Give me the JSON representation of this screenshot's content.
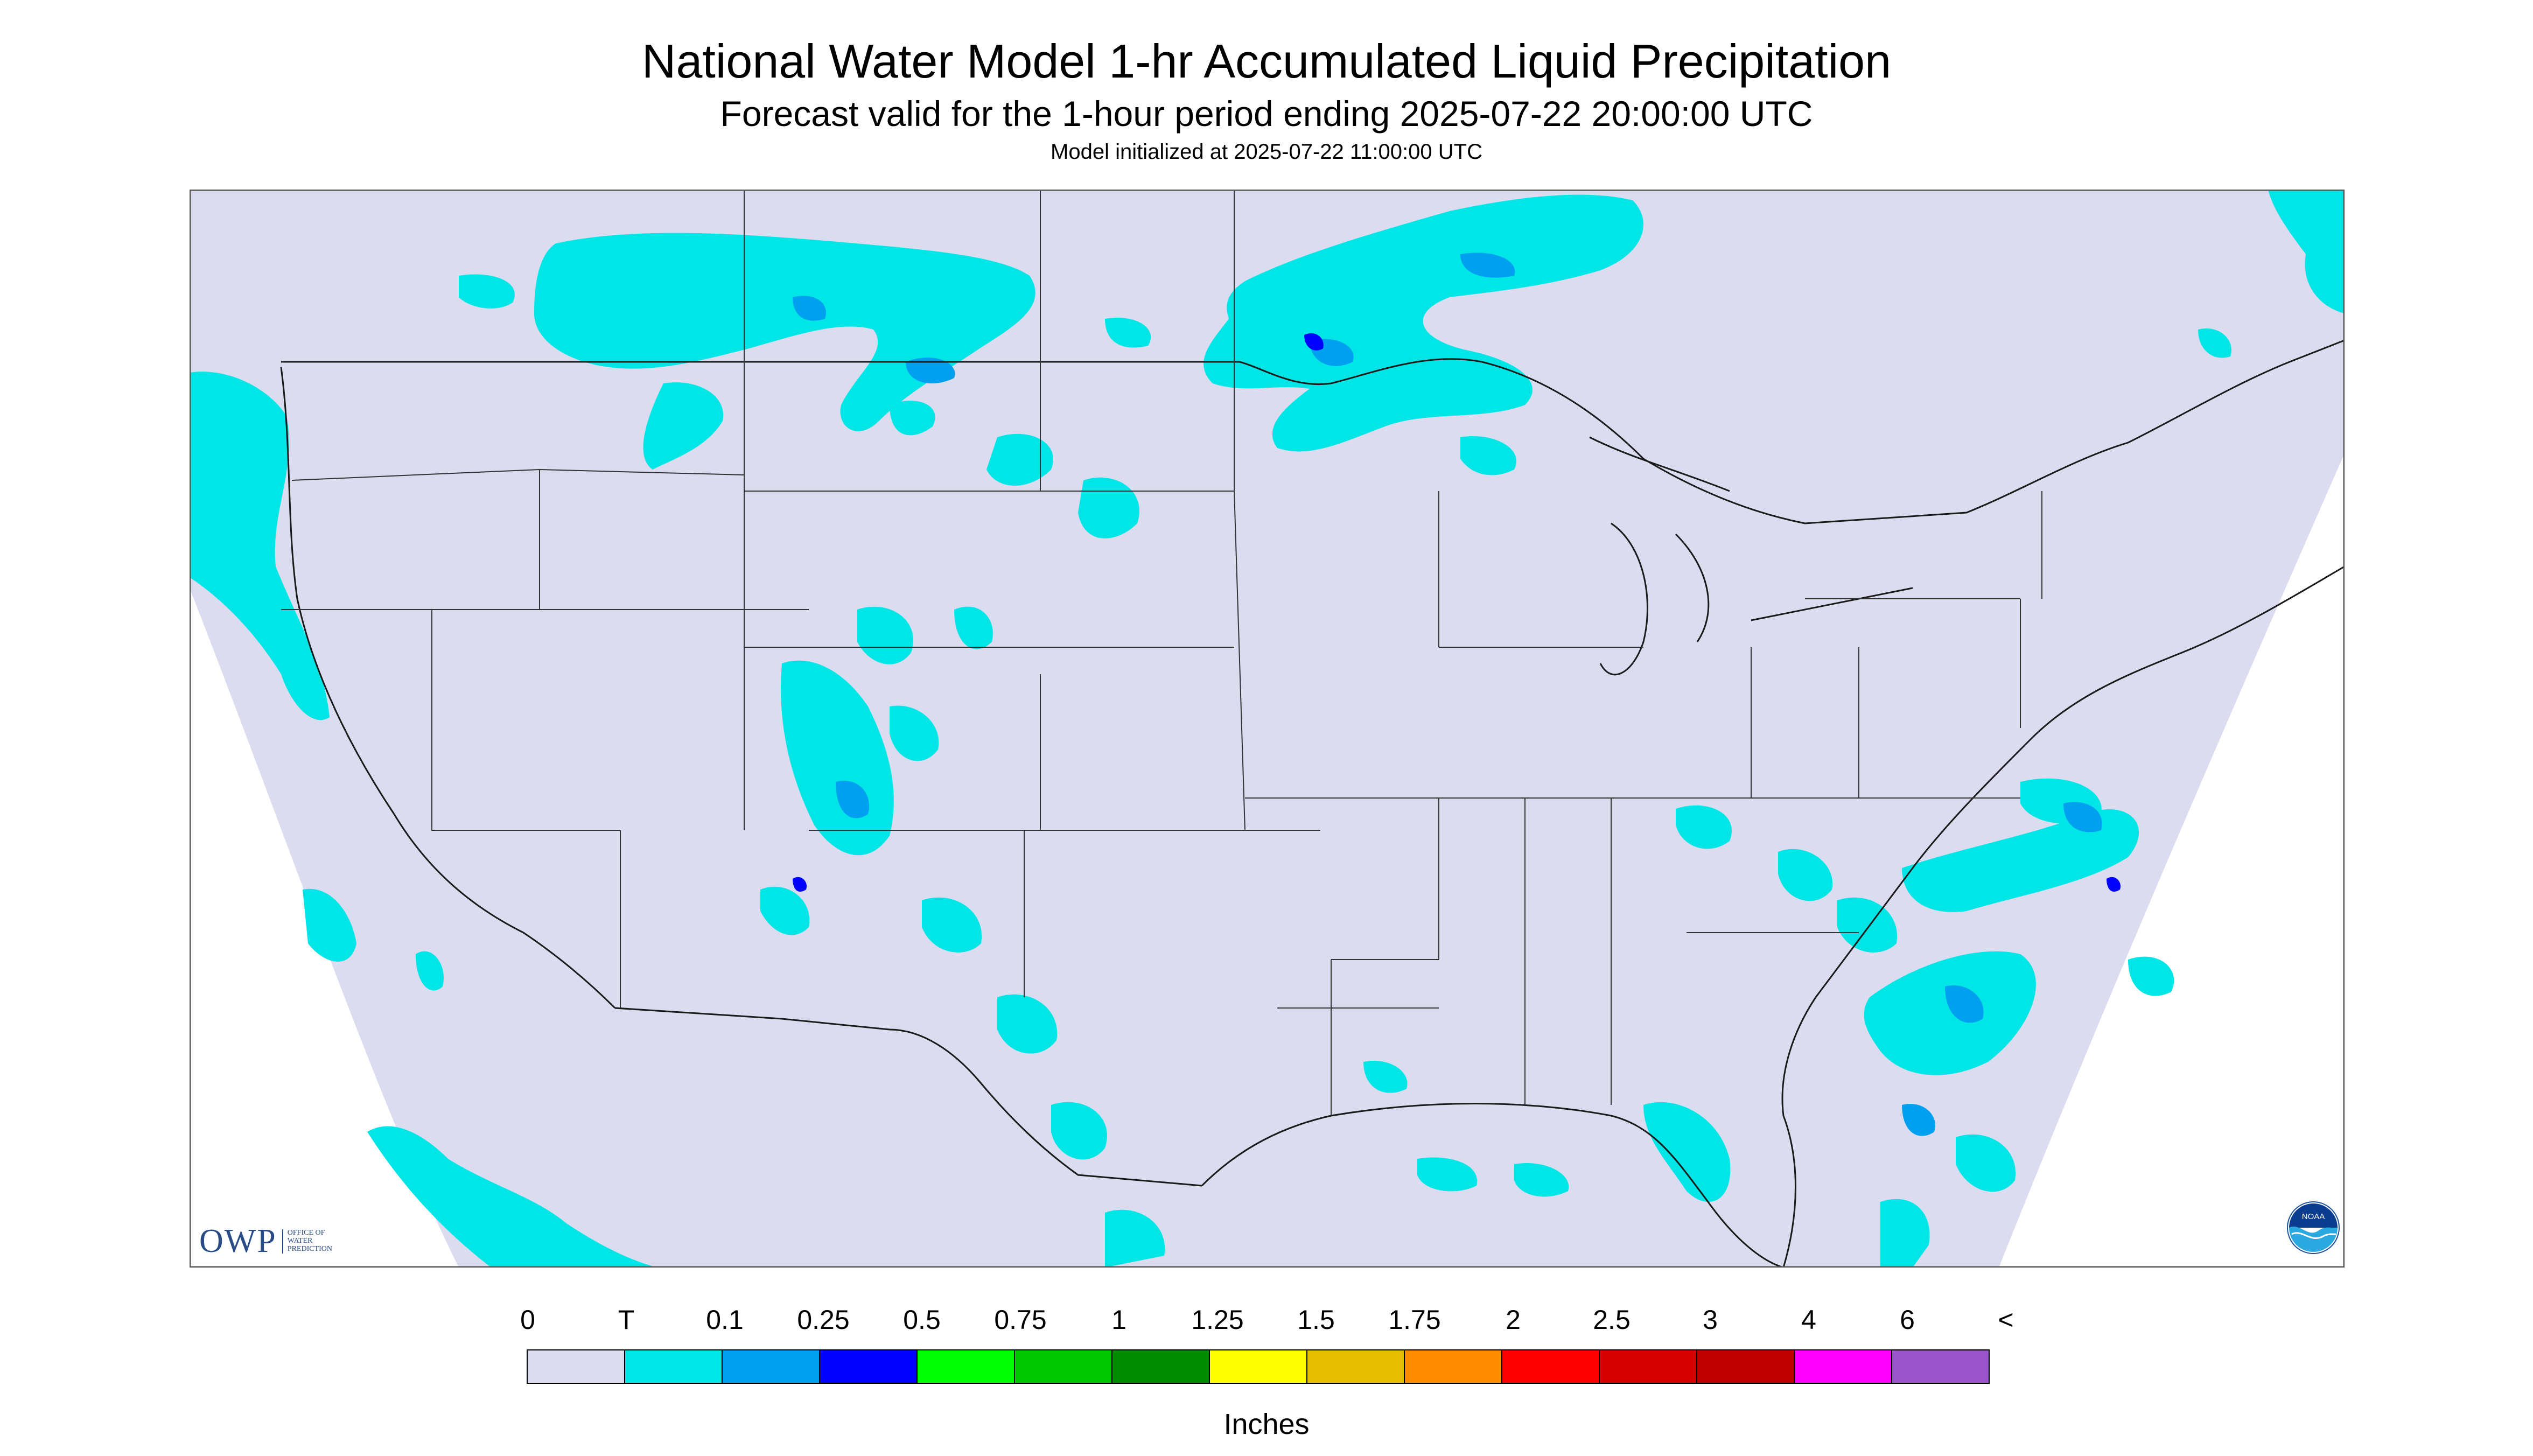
{
  "header": {
    "title": "National Water Model 1-hr Accumulated Liquid Precipitation",
    "subtitle": "Forecast valid for the 1-hour period ending 2025-07-22 20:00:00 UTC",
    "init": "Model initialized at 2025-07-22 11:00:00 UTC"
  },
  "legend": {
    "ticks": [
      "0",
      "T",
      "0.1",
      "0.25",
      "0.5",
      "0.75",
      "1",
      "1.25",
      "1.5",
      "1.75",
      "2",
      "2.5",
      "3",
      "4",
      "6",
      "<"
    ],
    "colors": [
      "#dcdcf0",
      "#00e6e6",
      "#00a0f0",
      "#0000ff",
      "#00ff00",
      "#00c800",
      "#008c00",
      "#ffff00",
      "#e6be00",
      "#ff8c00",
      "#ff0000",
      "#d90000",
      "#be0000",
      "#ff00ff",
      "#9955c9"
    ],
    "unit": "Inches"
  },
  "logos": {
    "owp_text": "OWP",
    "owp_small": [
      "OFFICE OF",
      "WATER",
      "PREDICTION"
    ],
    "noaa_text": "NOAA"
  },
  "map": {
    "background_color": "#dcdcf0",
    "outside_color": "#ffffff",
    "boundary_color": "#1a1a1a",
    "light_precip_color": "#00e6e6",
    "moderate_precip_color": "#00a0f0",
    "heavy_precip_color": "#0000ff"
  }
}
